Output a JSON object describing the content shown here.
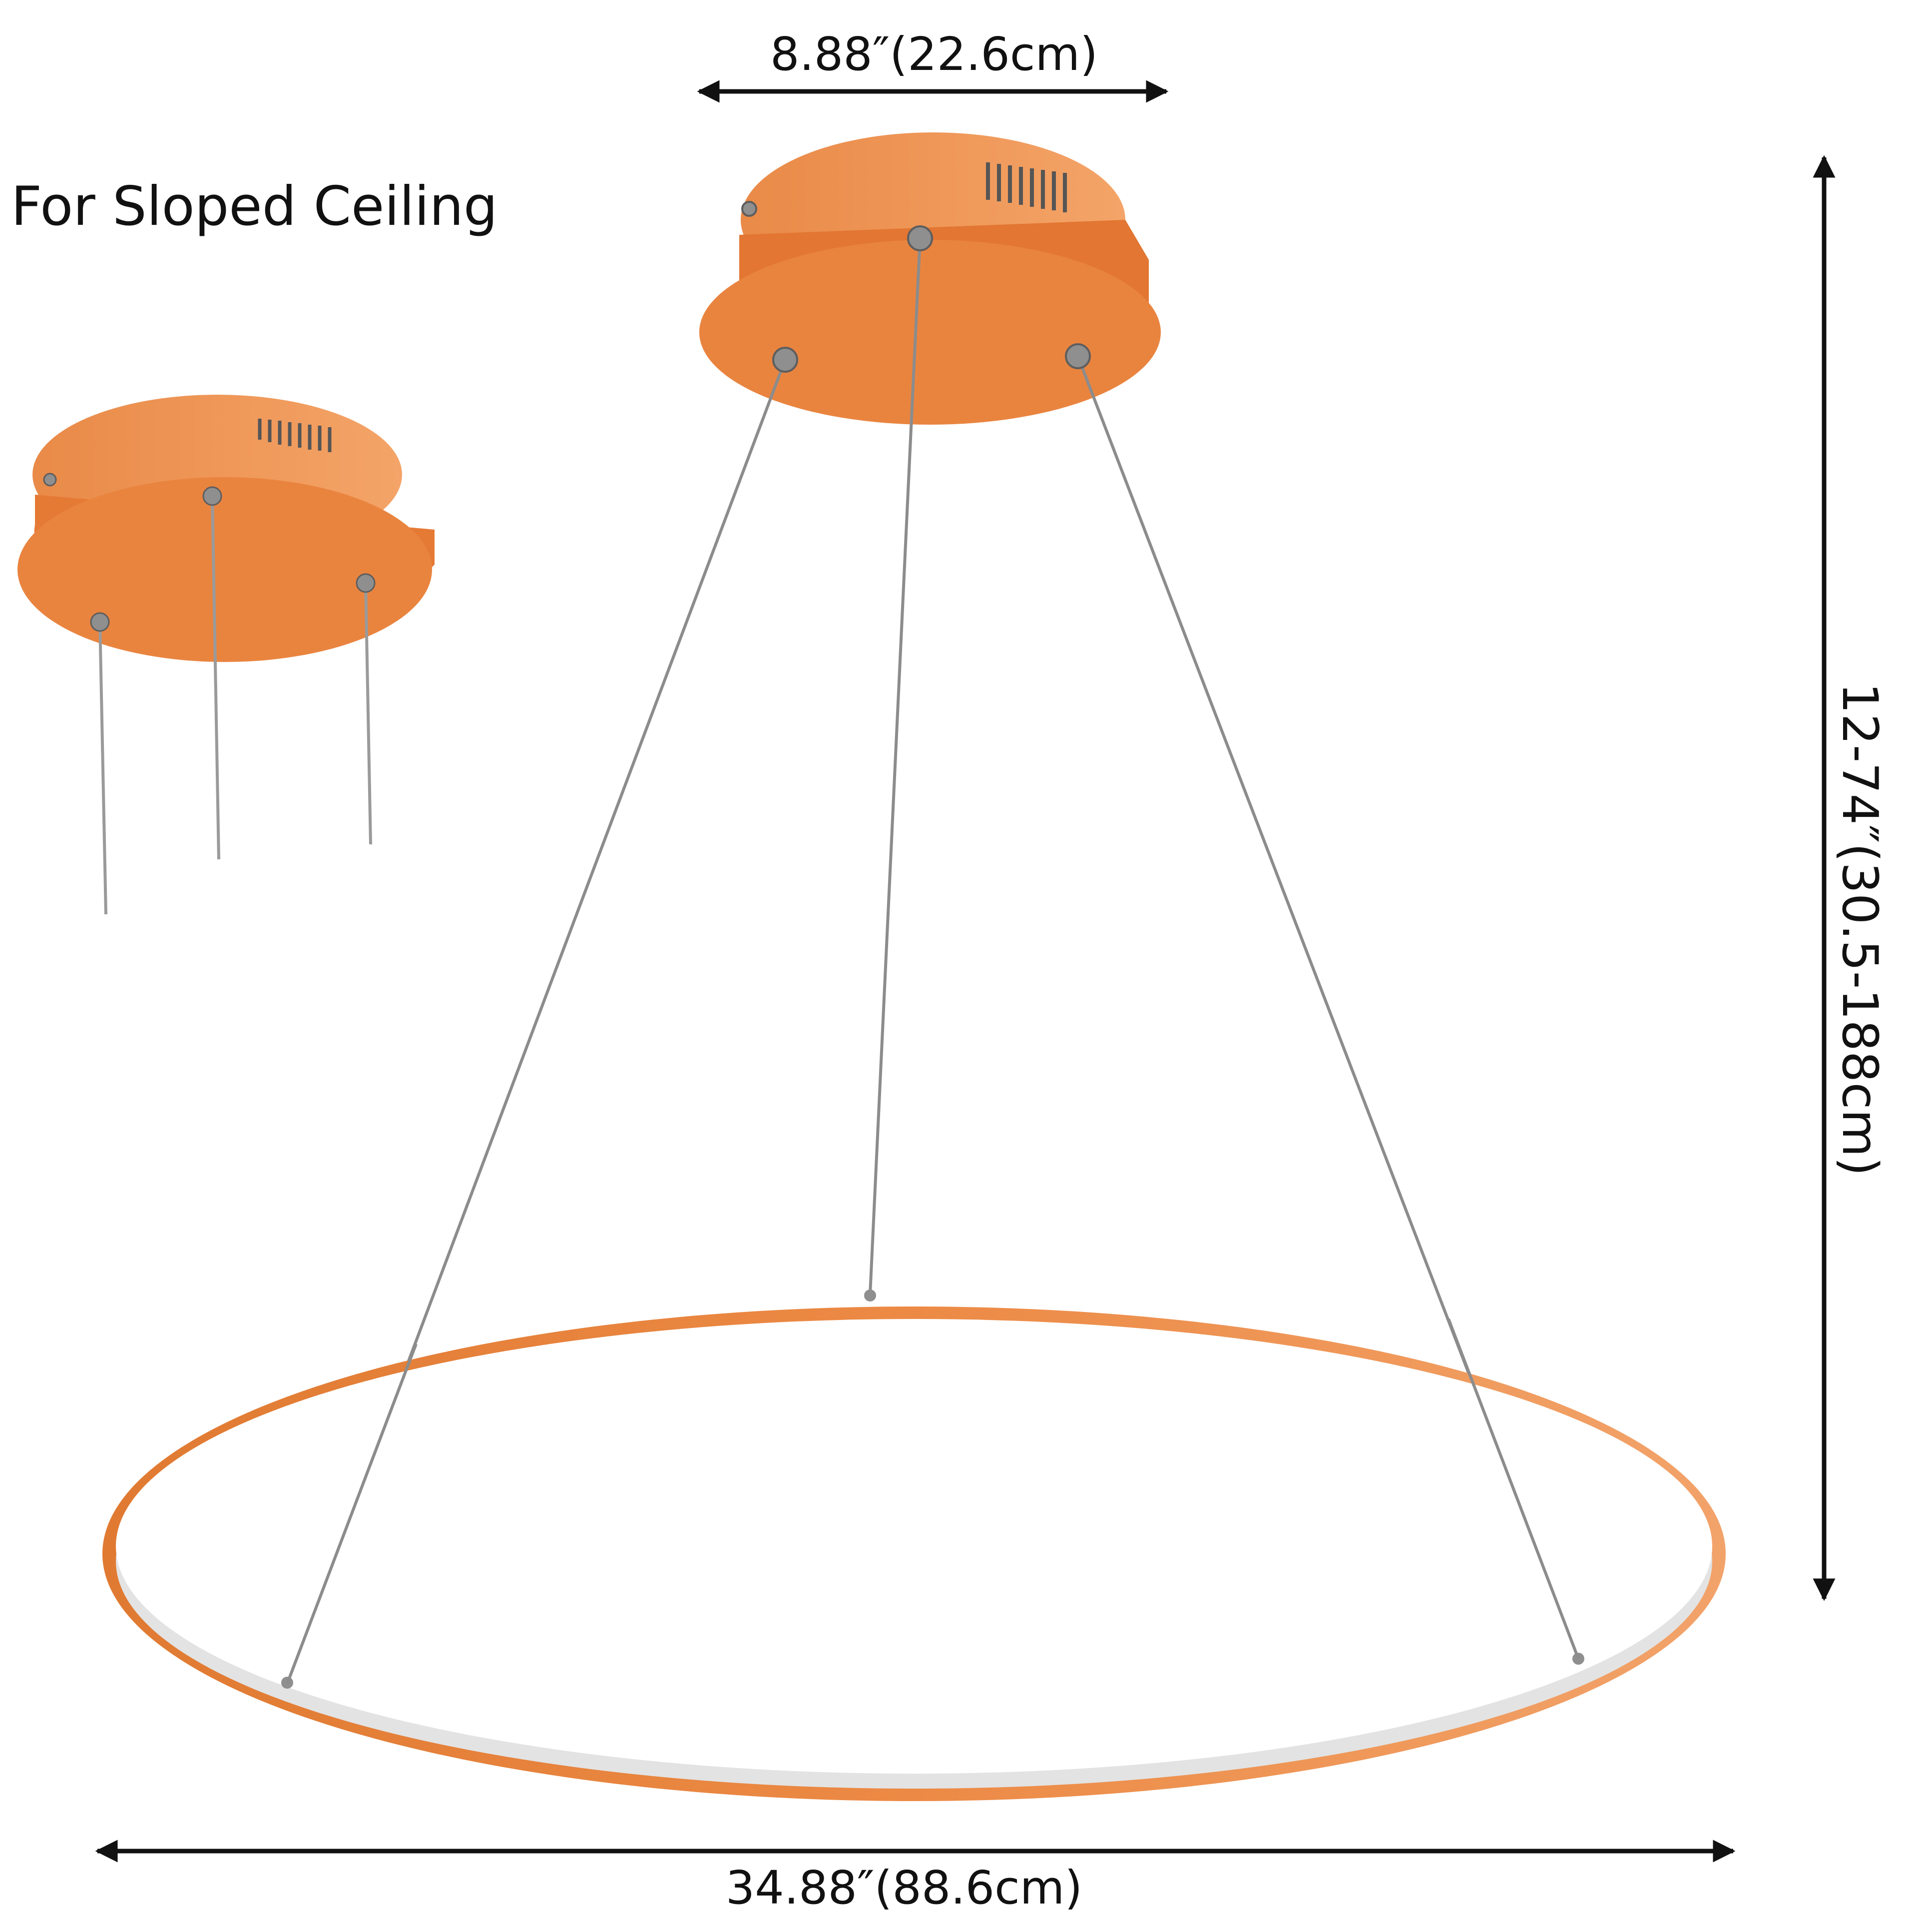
{
  "caption": "For Sloped Ceiling",
  "dimensions": {
    "canopy_width": "8.88″(22.6cm)",
    "ring_width": "34.88″(88.6cm)",
    "drop_height": "12-74″(30.5-188cm)"
  },
  "colors": {
    "fixture": "#E9843F",
    "fixture_shadow": "#D9702A",
    "canopy_top": "#F09A58",
    "ring_inner": "#E4E4E4",
    "cable": "#8C8C8C",
    "hardware": "#9A9A9A",
    "dimension_line": "#111111"
  }
}
